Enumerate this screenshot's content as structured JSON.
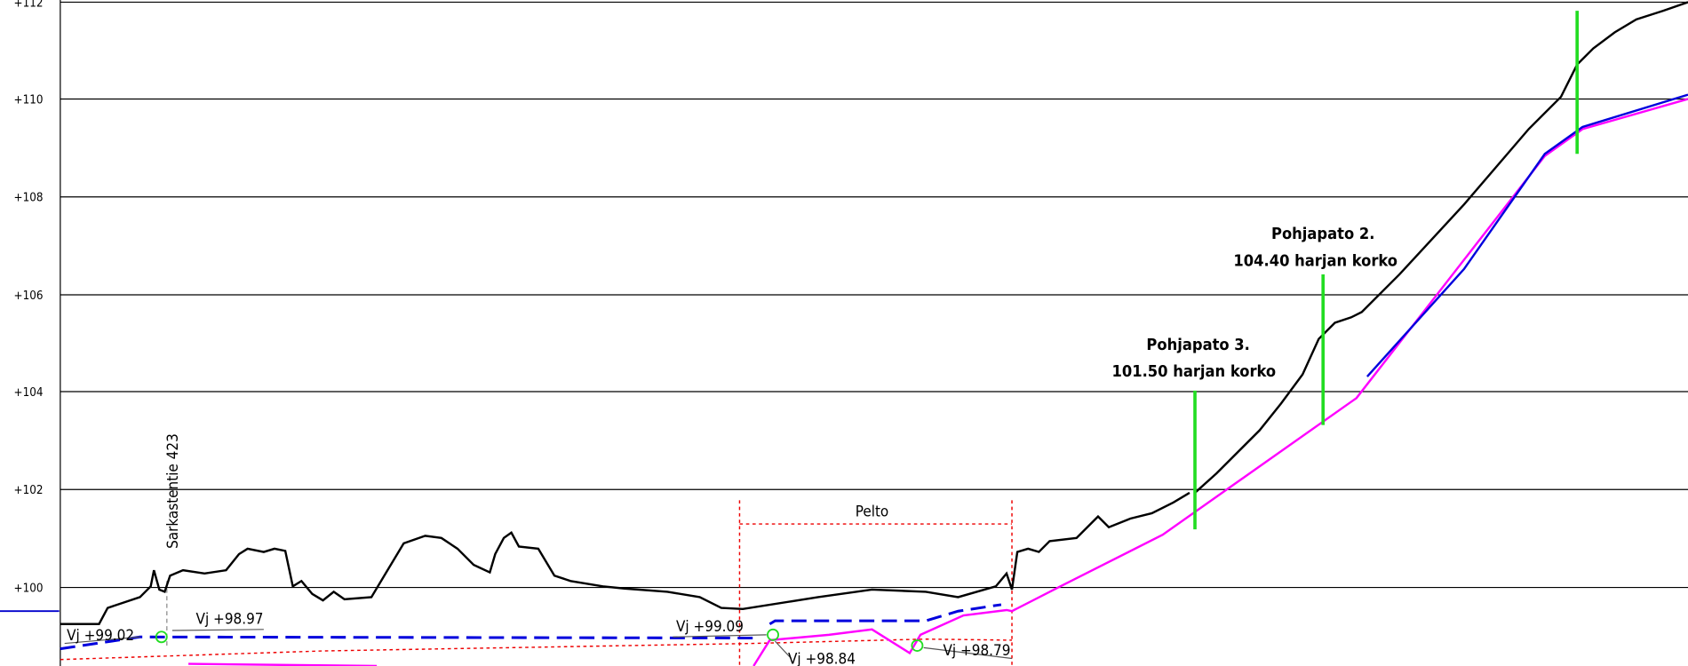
{
  "axis": {
    "labels": [
      "+112",
      "+110",
      "+108",
      "+106",
      "+104",
      "+102",
      "+100"
    ]
  },
  "road": {
    "label": "Sarkastentie 423"
  },
  "field": {
    "label": "Pelto"
  },
  "levels": [
    "Vj +99.02",
    "Vj +98.97",
    "Vj +99.09",
    "Vj +98.84",
    "Vj +98.79"
  ],
  "weirs": [
    {
      "title": "Pohjapato 3.",
      "crest": "101.50 harjan korko"
    },
    {
      "title": "Pohjapato 2.",
      "crest": "104.40 harjan korko"
    }
  ]
}
